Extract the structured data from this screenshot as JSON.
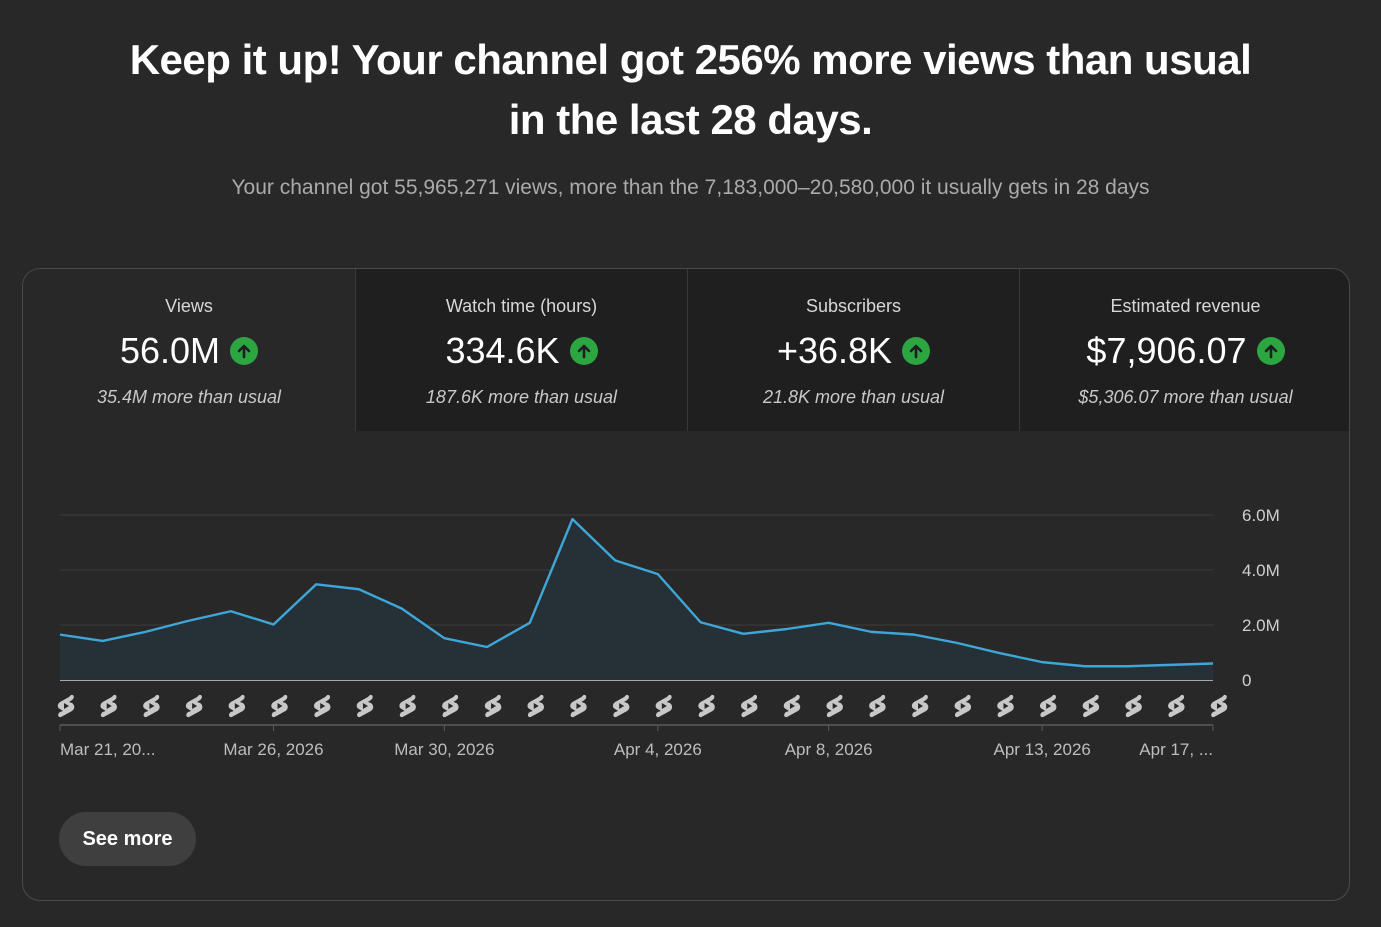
{
  "header": {
    "headline": "Keep it up! Your channel got 256% more views than usual in the last 28 days.",
    "subline": "Your channel got 55,965,271 views, more than the 7,183,000–20,580,000 it usually gets in 28 days"
  },
  "metrics": [
    {
      "label": "Views",
      "value": "56.0M",
      "note": "35.4M more than usual",
      "active": true
    },
    {
      "label": "Watch time (hours)",
      "value": "334.6K",
      "note": "187.6K more than usual",
      "active": false
    },
    {
      "label": "Subscribers",
      "value": "+36.8K",
      "note": "21.8K more than usual",
      "active": false
    },
    {
      "label": "Estimated revenue",
      "value": "$7,906.07",
      "note": "$5,306.07 more than usual",
      "active": false
    }
  ],
  "colors": {
    "accent_line": "#3ea6d8",
    "up_badge": "#2ba640",
    "area_fill": "#263137"
  },
  "icons": {
    "trend": "arrow-up-icon",
    "short_marker": "shorts-icon"
  },
  "chart_data": {
    "type": "area",
    "x_labels": [
      "Mar 21, 20...",
      "Mar 26, 2026",
      "Mar 30, 2026",
      "Apr 4, 2026",
      "Apr 8, 2026",
      "Apr 13, 2026",
      "Apr 17, ..."
    ],
    "x": [
      "Mar 21, 2026",
      "Mar 22, 2026",
      "Mar 23, 2026",
      "Mar 24, 2026",
      "Mar 25, 2026",
      "Mar 26, 2026",
      "Mar 27, 2026",
      "Mar 28, 2026",
      "Mar 29, 2026",
      "Mar 30, 2026",
      "Mar 31, 2026",
      "Apr 1, 2026",
      "Apr 2, 2026",
      "Apr 3, 2026",
      "Apr 4, 2026",
      "Apr 5, 2026",
      "Apr 6, 2026",
      "Apr 7, 2026",
      "Apr 8, 2026",
      "Apr 9, 2026",
      "Apr 10, 2026",
      "Apr 11, 2026",
      "Apr 12, 2026",
      "Apr 13, 2026",
      "Apr 14, 2026",
      "Apr 15, 2026",
      "Apr 16, 2026",
      "Apr 17, 2026"
    ],
    "series": [
      {
        "values": [
          1.65,
          1.42,
          1.75,
          2.15,
          2.5,
          2.02,
          3.48,
          3.3,
          2.6,
          1.52,
          1.2,
          2.08,
          5.85,
          4.35,
          3.85,
          2.1,
          1.68,
          1.85,
          2.08,
          1.75,
          1.65,
          1.35,
          0.98,
          0.65,
          0.5,
          0.5,
          0.55,
          0.6
        ]
      }
    ],
    "y_ticks": [
      "0",
      "2.0M",
      "4.0M",
      "6.0M"
    ],
    "y_tick_values": [
      0,
      2,
      4,
      6
    ],
    "ylim": [
      0,
      6
    ],
    "y_unit": "millions of views",
    "grid": true,
    "shorts_markers_per_day": true
  },
  "actions": {
    "see_more_label": "See more"
  }
}
